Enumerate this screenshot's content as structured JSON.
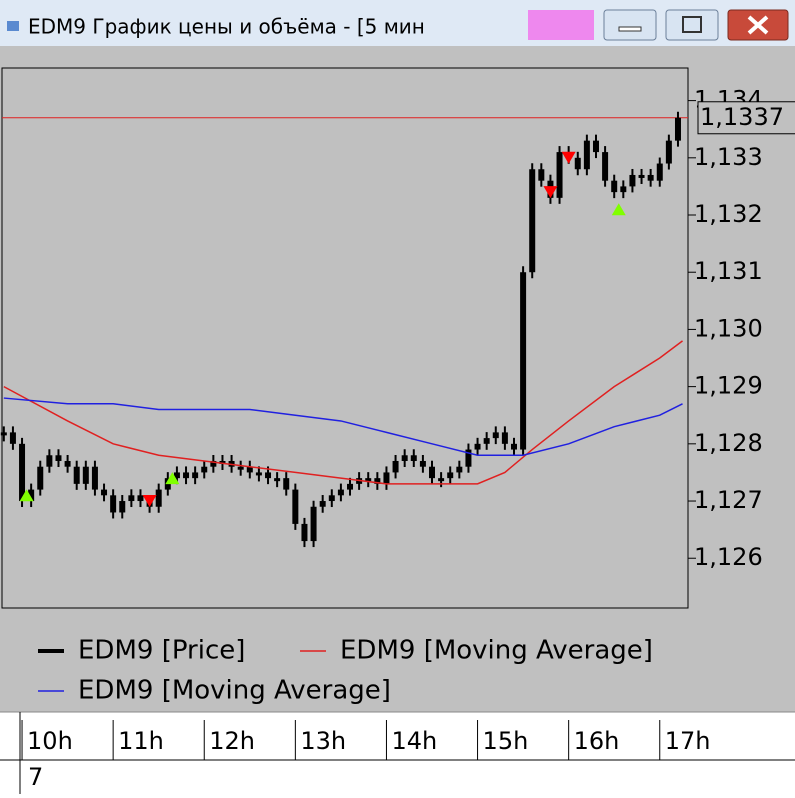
{
  "window": {
    "title": "EDM9 График цены и объёма - [5 мин"
  },
  "chart_data": {
    "type": "price",
    "xlim": [
      9.78,
      17.31
    ],
    "xticks": [
      {
        "value": 10,
        "label": "10h"
      },
      {
        "value": 11,
        "label": "11h"
      },
      {
        "value": 12,
        "label": "12h"
      },
      {
        "value": 13,
        "label": "13h"
      },
      {
        "value": 14,
        "label": "14h"
      },
      {
        "value": 15,
        "label": "15h"
      },
      {
        "value": 16,
        "label": "16h"
      },
      {
        "value": 17,
        "label": "17h"
      }
    ],
    "ylim": [
      1.12513,
      1.13457
    ],
    "yticks": [
      {
        "value": 1.126,
        "label": "1,126"
      },
      {
        "value": 1.127,
        "label": "1,127"
      },
      {
        "value": 1.128,
        "label": "1,128"
      },
      {
        "value": 1.129,
        "label": "1,129"
      },
      {
        "value": 1.13,
        "label": "1,130"
      },
      {
        "value": 1.131,
        "label": "1,131"
      },
      {
        "value": 1.132,
        "label": "1,132"
      },
      {
        "value": 1.133,
        "label": "1,133"
      },
      {
        "value": 1.134,
        "label": "1,134"
      }
    ],
    "current_price": {
      "value": 1.1337,
      "label": "1,1337",
      "color": "#e02020"
    },
    "series": [
      {
        "name": "EDM9 [Price]",
        "color": "#000000",
        "x": [
          9.8,
          9.9,
          10.0,
          10.1,
          10.2,
          10.3,
          10.4,
          10.5,
          10.6,
          10.7,
          10.8,
          10.9,
          11.0,
          11.1,
          11.2,
          11.3,
          11.4,
          11.5,
          11.6,
          11.7,
          11.8,
          11.9,
          12.0,
          12.1,
          12.2,
          12.3,
          12.4,
          12.5,
          12.6,
          12.7,
          12.8,
          12.9,
          13.0,
          13.1,
          13.2,
          13.3,
          13.4,
          13.5,
          13.6,
          13.7,
          13.8,
          13.9,
          14.0,
          14.1,
          14.2,
          14.3,
          14.4,
          14.5,
          14.6,
          14.7,
          14.8,
          14.9,
          15.0,
          15.1,
          15.2,
          15.3,
          15.4,
          15.5,
          15.6,
          15.7,
          15.8,
          15.9,
          16.0,
          16.1,
          16.2,
          16.3,
          16.4,
          16.5,
          16.6,
          16.7,
          16.8,
          16.9,
          17.0,
          17.1,
          17.2
        ],
        "values": [
          1.1282,
          1.128,
          1.127,
          1.1272,
          1.1276,
          1.1278,
          1.1277,
          1.1276,
          1.1273,
          1.1276,
          1.1272,
          1.1271,
          1.1268,
          1.127,
          1.1271,
          1.127,
          1.1269,
          1.1272,
          1.1274,
          1.1275,
          1.1274,
          1.1275,
          1.1276,
          1.1277,
          1.1277,
          1.1276,
          1.1276,
          1.1275,
          1.1275,
          1.1274,
          1.1274,
          1.1272,
          1.1266,
          1.1263,
          1.1269,
          1.127,
          1.1271,
          1.1272,
          1.1273,
          1.1274,
          1.1274,
          1.1273,
          1.1275,
          1.1277,
          1.1278,
          1.1277,
          1.1276,
          1.1274,
          1.1274,
          1.1275,
          1.1276,
          1.1279,
          1.128,
          1.1281,
          1.1282,
          1.128,
          1.1279,
          1.131,
          1.1328,
          1.1326,
          1.1323,
          1.1331,
          1.133,
          1.1328,
          1.1333,
          1.1331,
          1.1326,
          1.1324,
          1.1325,
          1.1327,
          1.1327,
          1.1326,
          1.1329,
          1.1333,
          1.1337
        ]
      },
      {
        "name": "EDM9 [Moving Average]",
        "color": "#e02020",
        "x": [
          9.8,
          10.5,
          11.0,
          11.5,
          12.0,
          12.5,
          13.0,
          13.5,
          14.0,
          14.5,
          15.0,
          15.3,
          15.6,
          16.0,
          16.5,
          17.0,
          17.25
        ],
        "values": [
          1.129,
          1.1284,
          1.128,
          1.1278,
          1.1277,
          1.1276,
          1.1275,
          1.1274,
          1.1273,
          1.1273,
          1.1273,
          1.1275,
          1.1279,
          1.1284,
          1.129,
          1.1295,
          1.1298
        ]
      },
      {
        "name": "EDM9 [Moving Average]",
        "color": "#2020e0",
        "x": [
          9.8,
          10.5,
          11.0,
          11.5,
          12.0,
          12.5,
          13.0,
          13.5,
          14.0,
          14.5,
          15.0,
          15.5,
          16.0,
          16.5,
          17.0,
          17.25
        ],
        "values": [
          1.1288,
          1.1287,
          1.1287,
          1.1286,
          1.1286,
          1.1286,
          1.1285,
          1.1284,
          1.1282,
          1.128,
          1.1278,
          1.1278,
          1.128,
          1.1283,
          1.1285,
          1.1287
        ]
      }
    ],
    "buy_signals": {
      "color": "#80ff00",
      "x": [
        10.05,
        11.65,
        16.55
      ],
      "values": [
        1.1271,
        1.1274,
        1.1321
      ]
    },
    "sell_signals": {
      "color": "#ff0000",
      "x": [
        11.4,
        15.8,
        16.0
      ],
      "values": [
        1.127,
        1.1324,
        1.133
      ]
    }
  },
  "volume_panel": {
    "label": "7"
  }
}
